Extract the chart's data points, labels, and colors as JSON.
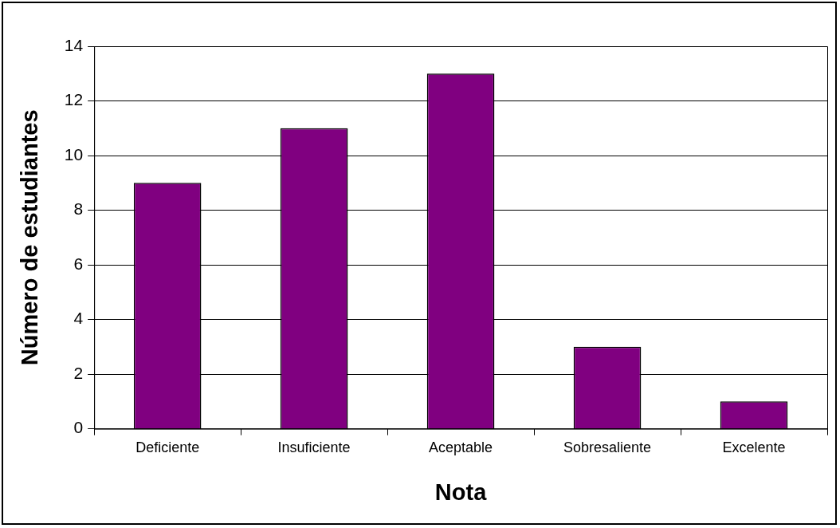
{
  "chart_data": {
    "type": "bar",
    "xlabel": "Nota",
    "ylabel": "Número de estudiantes",
    "categories": [
      "Deficiente",
      "Insuficiente",
      "Aceptable",
      "Sobresaliente",
      "Excelente"
    ],
    "values": [
      9,
      11,
      13,
      3,
      1
    ],
    "color": "#800080",
    "ylim": [
      0,
      14
    ],
    "yticks": [
      0,
      2,
      4,
      6,
      8,
      10,
      12,
      14
    ],
    "grid": "y",
    "legend": false
  }
}
